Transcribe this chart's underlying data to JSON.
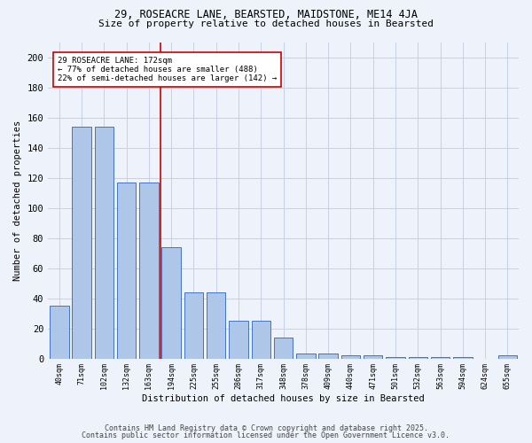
{
  "title": "29, ROSEACRE LANE, BEARSTED, MAIDSTONE, ME14 4JA",
  "subtitle": "Size of property relative to detached houses in Bearsted",
  "xlabel": "Distribution of detached houses by size in Bearsted",
  "ylabel": "Number of detached properties",
  "categories": [
    "40sqm",
    "71sqm",
    "102sqm",
    "132sqm",
    "163sqm",
    "194sqm",
    "225sqm",
    "255sqm",
    "286sqm",
    "317sqm",
    "348sqm",
    "378sqm",
    "409sqm",
    "440sqm",
    "471sqm",
    "501sqm",
    "532sqm",
    "563sqm",
    "594sqm",
    "624sqm",
    "655sqm"
  ],
  "values": [
    35,
    154,
    154,
    117,
    117,
    74,
    44,
    44,
    25,
    25,
    14,
    3,
    3,
    2,
    2,
    1,
    1,
    1,
    1,
    0,
    2
  ],
  "bar_color": "#aec6e8",
  "bar_edge_color": "#4472c4",
  "vline_color": "#cc0000",
  "annotation_text": "29 ROSEACRE LANE: 172sqm\n← 77% of detached houses are smaller (488)\n22% of semi-detached houses are larger (142) →",
  "annotation_box_color": "#ffffff",
  "annotation_box_edge": "#cc0000",
  "ylim": [
    0,
    210
  ],
  "yticks": [
    0,
    20,
    40,
    60,
    80,
    100,
    120,
    140,
    160,
    180,
    200
  ],
  "footer1": "Contains HM Land Registry data © Crown copyright and database right 2025.",
  "footer2": "Contains public sector information licensed under the Open Government Licence v3.0.",
  "bg_color": "#eef2fa",
  "grid_color": "#c8d0e8"
}
